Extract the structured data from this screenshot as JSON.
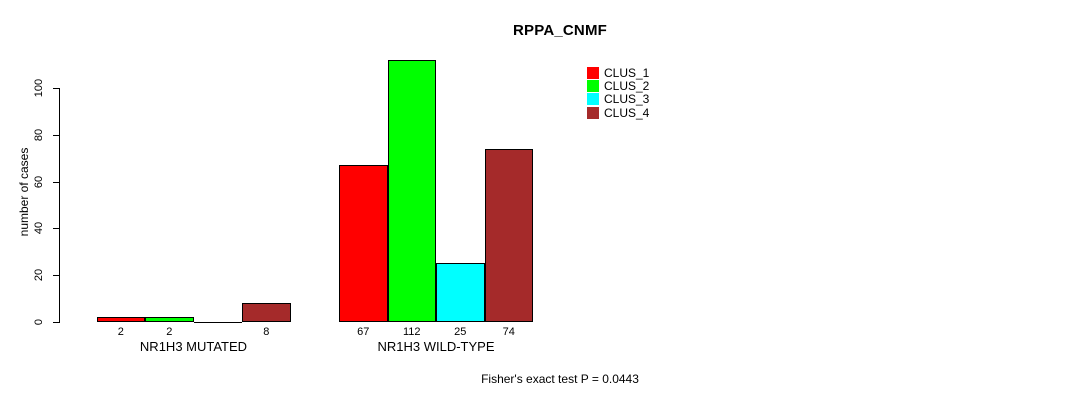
{
  "chart_data": {
    "type": "bar",
    "title": "RPPA_CNMF",
    "ylabel": "number of cases",
    "xlabel": "",
    "ylim": [
      0,
      117
    ],
    "yticks": [
      0,
      20,
      40,
      60,
      80,
      100
    ],
    "grid": false,
    "legend_position": "top-right-inside",
    "categories": [
      "NR1H3 MUTATED",
      "NR1H3 WILD-TYPE"
    ],
    "series": [
      {
        "name": "CLUS_1",
        "color": "#FF0000",
        "values": [
          2,
          67
        ]
      },
      {
        "name": "CLUS_2",
        "color": "#00FF00",
        "values": [
          2,
          112
        ]
      },
      {
        "name": "CLUS_3",
        "color": "#00FFFF",
        "values": [
          0,
          25
        ]
      },
      {
        "name": "CLUS_4",
        "color": "#A52A2A",
        "values": [
          8,
          74
        ]
      }
    ],
    "bar_value_labels": [
      [
        "2",
        "2",
        "",
        "8"
      ],
      [
        "67",
        "112",
        "25",
        "74"
      ]
    ],
    "footnote": "Fisher's exact test P = 0.0443",
    "axis_color": "#000000"
  }
}
